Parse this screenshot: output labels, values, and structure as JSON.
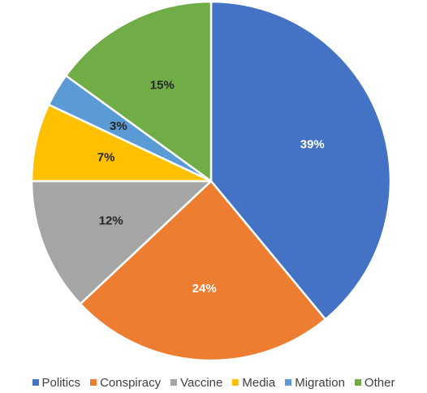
{
  "chart_data": {
    "type": "pie",
    "title": "",
    "legend_position": "bottom",
    "slices": [
      {
        "label": "Politics",
        "value": 39,
        "display": "39%",
        "color": "#4472C4",
        "label_color": "#ffffff"
      },
      {
        "label": "Conspiracy",
        "value": 24,
        "display": "24%",
        "color": "#ED7D31",
        "label_color": "#ffffff"
      },
      {
        "label": "Vaccine",
        "value": 12,
        "display": "12%",
        "color": "#A5A5A5",
        "label_color": "#262626"
      },
      {
        "label": "Media",
        "value": 7,
        "display": "7%",
        "color": "#FFC000",
        "label_color": "#262626"
      },
      {
        "label": "Migration",
        "value": 3,
        "display": "3%",
        "color": "#5B9BD5",
        "label_color": "#262626"
      },
      {
        "label": "Other",
        "value": 15,
        "display": "15%",
        "color": "#70AD47",
        "label_color": "#262626"
      }
    ]
  }
}
